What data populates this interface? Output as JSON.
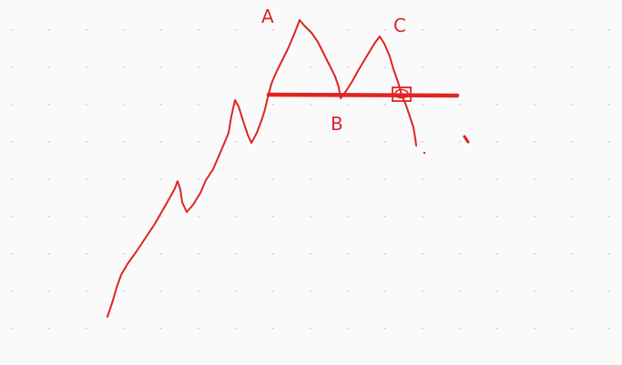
{
  "theme": {
    "background": "#fafafa",
    "grid_dot_color": "#c8c8c8",
    "ink_color": "#e02424"
  },
  "diagram": {
    "labels": {
      "A": "A",
      "B": "B",
      "C": "C"
    }
  }
}
